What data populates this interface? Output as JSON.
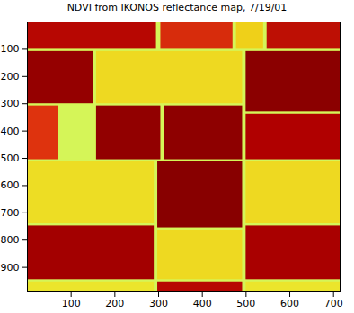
{
  "chart_data": {
    "type": "heatmap",
    "title": "NDVI from IKONOS reflectance map, 7/19/01",
    "xlim": [
      0,
      715
    ],
    "ylim": [
      0,
      990
    ],
    "xticks": [
      100,
      200,
      300,
      400,
      500,
      600,
      700
    ],
    "yticks": [
      100,
      200,
      300,
      400,
      500,
      600,
      700,
      800,
      900
    ],
    "zlim": [
      0.1,
      0.9
    ],
    "cells": [
      {
        "x1": 0,
        "x2": 715,
        "y1": 0,
        "y2": 990,
        "value": 0.22
      },
      {
        "x1": 0,
        "x2": 295,
        "y1": 0,
        "y2": 100,
        "value": 0.72
      },
      {
        "x1": 305,
        "x2": 470,
        "y1": 0,
        "y2": 100,
        "value": 0.62
      },
      {
        "x1": 478,
        "x2": 540,
        "y1": 0,
        "y2": 100,
        "value": 0.35
      },
      {
        "x1": 548,
        "x2": 715,
        "y1": 0,
        "y2": 100,
        "value": 0.7
      },
      {
        "x1": 0,
        "x2": 150,
        "y1": 108,
        "y2": 300,
        "value": 0.82
      },
      {
        "x1": 158,
        "x2": 492,
        "y1": 108,
        "y2": 300,
        "value": 0.33
      },
      {
        "x1": 500,
        "x2": 715,
        "y1": 108,
        "y2": 330,
        "value": 0.85
      },
      {
        "x1": 0,
        "x2": 70,
        "y1": 308,
        "y2": 505,
        "value": 0.6
      },
      {
        "x1": 72,
        "x2": 150,
        "y1": 308,
        "y2": 505,
        "value": 0.22
      },
      {
        "x1": 158,
        "x2": 305,
        "y1": 308,
        "y2": 505,
        "value": 0.83
      },
      {
        "x1": 313,
        "x2": 492,
        "y1": 308,
        "y2": 505,
        "value": 0.84
      },
      {
        "x1": 500,
        "x2": 715,
        "y1": 338,
        "y2": 505,
        "value": 0.74
      },
      {
        "x1": 0,
        "x2": 290,
        "y1": 513,
        "y2": 740,
        "value": 0.32
      },
      {
        "x1": 298,
        "x2": 492,
        "y1": 513,
        "y2": 755,
        "value": 0.86
      },
      {
        "x1": 500,
        "x2": 715,
        "y1": 513,
        "y2": 740,
        "value": 0.33
      },
      {
        "x1": 0,
        "x2": 290,
        "y1": 748,
        "y2": 945,
        "value": 0.78
      },
      {
        "x1": 298,
        "x2": 492,
        "y1": 763,
        "y2": 945,
        "value": 0.33
      },
      {
        "x1": 500,
        "x2": 715,
        "y1": 748,
        "y2": 945,
        "value": 0.76
      },
      {
        "x1": 0,
        "x2": 290,
        "y1": 953,
        "y2": 990,
        "value": 0.3
      },
      {
        "x1": 298,
        "x2": 492,
        "y1": 953,
        "y2": 990,
        "value": 0.72
      },
      {
        "x1": 500,
        "x2": 715,
        "y1": 953,
        "y2": 990,
        "value": 0.3
      }
    ]
  }
}
